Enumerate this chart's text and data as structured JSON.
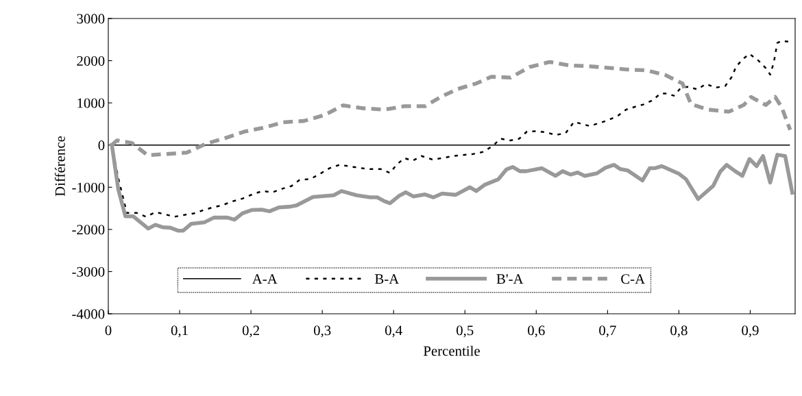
{
  "chart_data": {
    "type": "line",
    "xlabel": "Percentile",
    "ylabel": "Différence",
    "xlim": [
      0,
      0.963
    ],
    "ylim": [
      -4000,
      3000
    ],
    "xticks": [
      0,
      {
        "value": 0.1,
        "label": "0,1"
      },
      {
        "value": 0.2,
        "label": "0,2"
      },
      {
        "value": 0.3,
        "label": "0,3"
      },
      {
        "value": 0.4,
        "label": "0,4"
      },
      {
        "value": 0.5,
        "label": "0,5"
      },
      {
        "value": 0.6,
        "label": "0,6"
      },
      {
        "value": 0.7,
        "label": "0,7"
      },
      {
        "value": 0.8,
        "label": "0,8"
      },
      {
        "value": 0.9,
        "label": "0,9"
      }
    ],
    "yticks": [
      -4000,
      -3000,
      -2000,
      -1000,
      0,
      1000,
      2000,
      3000
    ],
    "grid": false,
    "legend": "bottom left",
    "marker": "none",
    "series": [
      {
        "name": "A-A",
        "color": "#000000",
        "line_style": "solid",
        "x": [
          0.005,
          0.955
        ],
        "values": [
          0,
          0
        ]
      },
      {
        "name": "B-A",
        "color": "#000000",
        "line_style": "dotted",
        "x": [
          0.005,
          0.014,
          0.026,
          0.04,
          0.053,
          0.066,
          0.079,
          0.093,
          0.105,
          0.12,
          0.134,
          0.148,
          0.159,
          0.175,
          0.188,
          0.202,
          0.216,
          0.23,
          0.245,
          0.257,
          0.268,
          0.284,
          0.297,
          0.31,
          0.324,
          0.337,
          0.351,
          0.367,
          0.382,
          0.395,
          0.404,
          0.415,
          0.427,
          0.439,
          0.454,
          0.468,
          0.483,
          0.495,
          0.512,
          0.526,
          0.539,
          0.55,
          0.564,
          0.576,
          0.587,
          0.601,
          0.614,
          0.627,
          0.641,
          0.653,
          0.675,
          0.688,
          0.701,
          0.715,
          0.726,
          0.739,
          0.75,
          0.763,
          0.774,
          0.783,
          0.793,
          0.803,
          0.813,
          0.826,
          0.838,
          0.851,
          0.865,
          0.874,
          0.88,
          0.889,
          0.899,
          0.911,
          0.922,
          0.928,
          0.933,
          0.938,
          0.944,
          0.954
        ],
        "values": [
          0,
          -780,
          -1610,
          -1610,
          -1700,
          -1590,
          -1640,
          -1700,
          -1660,
          -1620,
          -1540,
          -1470,
          -1430,
          -1330,
          -1270,
          -1170,
          -1090,
          -1120,
          -1030,
          -970,
          -830,
          -800,
          -680,
          -550,
          -470,
          -500,
          -540,
          -570,
          -570,
          -660,
          -470,
          -310,
          -370,
          -260,
          -340,
          -310,
          -260,
          -240,
          -210,
          -160,
          -20,
          150,
          110,
          150,
          320,
          330,
          300,
          240,
          280,
          550,
          450,
          520,
          590,
          700,
          840,
          910,
          960,
          1060,
          1220,
          1220,
          1170,
          1360,
          1380,
          1320,
          1450,
          1360,
          1400,
          1610,
          1850,
          2030,
          2160,
          2010,
          1820,
          1670,
          1950,
          2420,
          2470,
          2450
        ]
      },
      {
        "name": "B'-A",
        "color": "#999999",
        "line_style": "solid",
        "x": [
          0.005,
          0.014,
          0.024,
          0.035,
          0.043,
          0.056,
          0.066,
          0.077,
          0.087,
          0.098,
          0.105,
          0.116,
          0.135,
          0.148,
          0.167,
          0.177,
          0.188,
          0.201,
          0.215,
          0.226,
          0.239,
          0.255,
          0.264,
          0.287,
          0.316,
          0.327,
          0.348,
          0.367,
          0.377,
          0.387,
          0.395,
          0.408,
          0.417,
          0.428,
          0.444,
          0.456,
          0.468,
          0.487,
          0.507,
          0.516,
          0.528,
          0.547,
          0.558,
          0.567,
          0.577,
          0.586,
          0.608,
          0.627,
          0.637,
          0.648,
          0.658,
          0.668,
          0.685,
          0.697,
          0.709,
          0.718,
          0.728,
          0.749,
          0.759,
          0.766,
          0.776,
          0.788,
          0.8,
          0.81,
          0.827,
          0.848,
          0.858,
          0.867,
          0.879,
          0.889,
          0.899,
          0.909,
          0.918,
          0.928,
          0.938,
          0.949,
          0.959
        ],
        "values": [
          0,
          -1050,
          -1690,
          -1690,
          -1800,
          -1980,
          -1890,
          -1950,
          -1960,
          -2030,
          -2030,
          -1870,
          -1830,
          -1720,
          -1720,
          -1770,
          -1620,
          -1540,
          -1530,
          -1570,
          -1480,
          -1460,
          -1430,
          -1230,
          -1190,
          -1090,
          -1190,
          -1240,
          -1240,
          -1330,
          -1380,
          -1200,
          -1120,
          -1220,
          -1170,
          -1240,
          -1150,
          -1180,
          -1000,
          -1090,
          -940,
          -810,
          -580,
          -520,
          -620,
          -620,
          -550,
          -730,
          -620,
          -700,
          -650,
          -730,
          -670,
          -540,
          -470,
          -570,
          -600,
          -840,
          -550,
          -550,
          -500,
          -590,
          -680,
          -810,
          -1280,
          -970,
          -630,
          -470,
          -620,
          -730,
          -330,
          -500,
          -260,
          -890,
          -230,
          -260,
          -1130
        ]
      },
      {
        "name": "C-A",
        "color": "#999999",
        "line_style": "dashed",
        "x": [
          0.005,
          0.012,
          0.033,
          0.055,
          0.084,
          0.11,
          0.137,
          0.163,
          0.191,
          0.22,
          0.245,
          0.274,
          0.303,
          0.329,
          0.358,
          0.387,
          0.415,
          0.444,
          0.466,
          0.49,
          0.516,
          0.537,
          0.564,
          0.591,
          0.619,
          0.646,
          0.673,
          0.701,
          0.728,
          0.755,
          0.781,
          0.805,
          0.817,
          0.841,
          0.87,
          0.891,
          0.901,
          0.922,
          0.935,
          0.944,
          0.956
        ],
        "values": [
          0,
          110,
          50,
          -240,
          -210,
          -180,
          30,
          160,
          320,
          420,
          540,
          570,
          710,
          940,
          870,
          840,
          920,
          920,
          1140,
          1330,
          1460,
          1620,
          1600,
          1850,
          1970,
          1890,
          1870,
          1830,
          1790,
          1770,
          1660,
          1460,
          970,
          840,
          790,
          950,
          1140,
          950,
          1140,
          900,
          360
        ]
      }
    ]
  }
}
